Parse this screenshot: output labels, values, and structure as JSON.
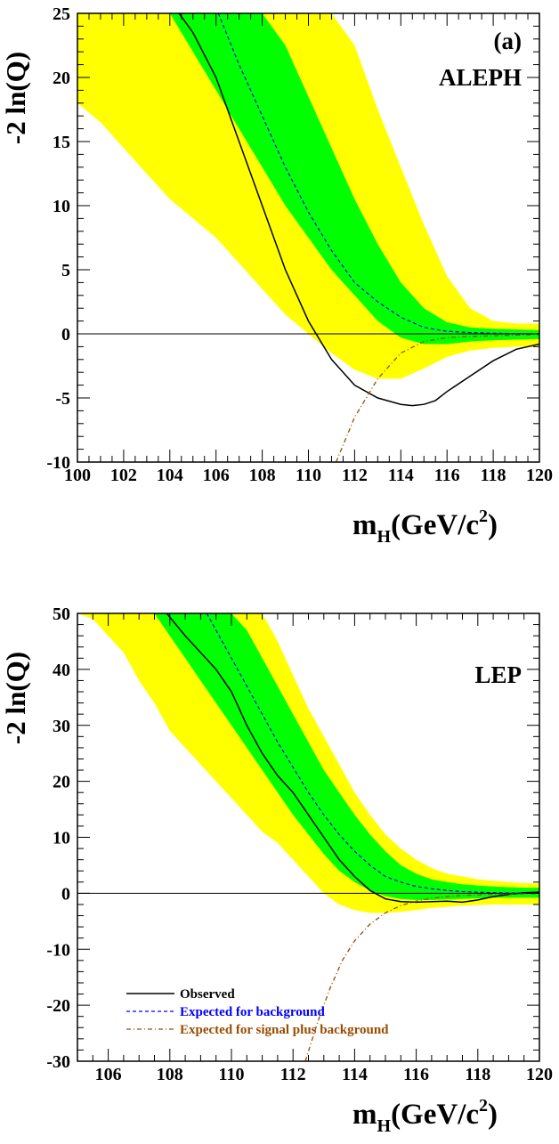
{
  "chart_data": [
    {
      "type": "line",
      "panel_id": "aleph",
      "ylabel": "-2 ln(Q)",
      "xlabel_main": "m",
      "xlabel_sub": "H",
      "xlabel_rest": "(GeV/c",
      "xlabel_sup": "2",
      "xlabel_close": ")",
      "annotations": [
        "(a)",
        "ALEPH"
      ],
      "xlim": [
        100,
        120
      ],
      "ylim": [
        -10,
        25
      ],
      "xticks": [
        100,
        102,
        104,
        106,
        108,
        110,
        112,
        114,
        116,
        118,
        120
      ],
      "yticks": [
        -10,
        -5,
        0,
        5,
        10,
        15,
        20,
        25
      ],
      "grid": false,
      "colors": {
        "yellow_band": "#ffff00",
        "green_band": "#00ff00",
        "observed": "#000000",
        "expected_bkg": "#0000ff",
        "expected_sig": "#994c00"
      },
      "yellow_band": {
        "x": [
          100,
          101,
          102,
          103,
          104,
          105,
          106,
          107,
          108,
          109,
          110,
          111,
          112,
          113,
          114,
          115,
          116,
          117,
          118,
          119,
          120
        ],
        "upper": [
          25,
          25,
          25,
          25,
          25,
          25,
          25,
          25,
          25,
          25,
          25,
          25,
          22.5,
          17.5,
          13,
          8.5,
          4.5,
          2,
          1,
          0.8,
          0.8
        ],
        "lower": [
          18,
          16.5,
          14.5,
          12.5,
          10.5,
          9,
          7.5,
          5.5,
          3.5,
          1.5,
          0,
          -1.5,
          -2.8,
          -3.5,
          -3.5,
          -2.7,
          -1.8,
          -1.3,
          -1.1,
          -1.0,
          -1.0
        ]
      },
      "green_band": {
        "x": [
          104,
          105,
          106,
          107,
          108,
          109,
          110,
          111,
          112,
          113,
          114,
          115,
          116,
          117,
          118,
          119,
          120
        ],
        "upper": [
          25,
          25,
          25,
          25,
          25,
          22.5,
          18.5,
          14.5,
          10.5,
          7,
          4,
          2,
          0.9,
          0.5,
          0.4,
          0.35,
          0.3
        ],
        "lower": [
          25,
          22,
          19,
          16,
          13,
          10,
          7.5,
          5,
          3,
          1,
          -0.3,
          -0.8,
          -0.8,
          -0.6,
          -0.5,
          -0.45,
          -0.4
        ]
      },
      "series": [
        {
          "name": "Observed",
          "x": [
            104.4,
            105,
            106,
            107,
            108,
            109,
            110,
            111,
            112,
            113,
            114,
            114.5,
            115,
            115.5,
            116,
            117,
            118,
            119,
            120
          ],
          "y": [
            25,
            23.5,
            20,
            15,
            10,
            5,
            1,
            -2,
            -4,
            -5,
            -5.5,
            -5.6,
            -5.5,
            -5.2,
            -4.5,
            -3.3,
            -2.1,
            -1.2,
            -0.8
          ]
        },
        {
          "name": "Expected for background",
          "x": [
            106.1,
            107,
            108,
            109,
            110,
            111,
            112,
            113,
            114,
            115,
            116,
            117,
            118,
            119,
            120
          ],
          "y": [
            25,
            21,
            17,
            13,
            9.5,
            6.5,
            4,
            2.5,
            1.3,
            0.5,
            0.2,
            0.1,
            0.05,
            0.02,
            0.01
          ]
        },
        {
          "name": "Expected for signal plus background",
          "x": [
            111.2,
            112,
            113,
            114,
            115,
            116,
            117,
            118,
            119,
            120
          ],
          "y": [
            -10,
            -6.5,
            -3.5,
            -1.5,
            -0.6,
            -0.3,
            -0.2,
            -0.15,
            -0.1,
            -0.05
          ]
        }
      ]
    },
    {
      "type": "line",
      "panel_id": "lep",
      "ylabel": "-2 ln(Q)",
      "xlabel_main": "m",
      "xlabel_sub": "H",
      "xlabel_rest": "(GeV/c",
      "xlabel_sup": "2",
      "xlabel_close": ")",
      "annotations": [
        "LEP"
      ],
      "xlim": [
        105,
        120
      ],
      "ylim": [
        -30,
        50
      ],
      "xticks": [
        106,
        108,
        110,
        112,
        114,
        116,
        118,
        120
      ],
      "yticks": [
        -30,
        -20,
        -10,
        0,
        10,
        20,
        30,
        40,
        50
      ],
      "grid": false,
      "legend_position": "bottom-left",
      "colors": {
        "yellow_band": "#ffff00",
        "green_band": "#00ff00",
        "observed": "#000000",
        "expected_bkg": "#0000ff",
        "expected_sig": "#994c00"
      },
      "yellow_band": {
        "x": [
          105,
          105.5,
          106,
          106.5,
          107,
          107.5,
          108,
          108.5,
          109,
          109.5,
          110,
          110.5,
          111,
          111.5,
          112,
          112.5,
          113,
          113.5,
          114,
          114.5,
          115,
          115.5,
          116,
          116.5,
          117,
          117.5,
          118,
          118.5,
          119,
          119.5,
          120
        ],
        "upper": [
          50,
          50,
          50,
          50,
          50,
          50,
          50,
          50,
          50,
          50,
          50,
          50,
          50,
          45,
          39,
          33,
          28,
          23,
          18,
          14,
          10.5,
          8,
          6,
          4.5,
          3.5,
          3,
          2.5,
          2.2,
          2,
          1.8,
          1.8
        ],
        "lower": [
          50,
          49,
          46,
          43,
          38,
          34,
          29,
          26,
          23,
          20,
          17,
          14,
          11,
          9,
          6,
          3,
          0,
          -2,
          -3,
          -3.5,
          -3.5,
          -3.3,
          -3,
          -2.6,
          -2.4,
          -2.2,
          -2.1,
          -2,
          -2,
          -2,
          -2
        ]
      },
      "green_band": {
        "x": [
          107.5,
          108,
          108.5,
          109,
          109.5,
          110,
          110.5,
          111,
          111.5,
          112,
          112.5,
          113,
          113.5,
          114,
          114.5,
          115,
          115.5,
          116,
          116.5,
          117,
          117.5,
          118,
          118.5,
          119,
          119.5,
          120
        ],
        "upper": [
          50,
          50,
          50,
          50,
          50,
          50,
          47,
          42,
          37,
          32,
          27,
          22,
          18,
          14,
          10.5,
          7.5,
          5,
          3.5,
          2.5,
          2,
          1.6,
          1.4,
          1.2,
          1.1,
          1,
          1
        ],
        "lower": [
          50,
          46,
          42,
          38,
          34,
          30,
          26,
          22,
          18,
          14,
          10.5,
          7,
          4,
          2,
          0.5,
          -0.5,
          -1,
          -1.2,
          -1.2,
          -1.1,
          -1,
          -0.9,
          -0.8,
          -0.8,
          -0.8,
          -0.8
        ]
      },
      "series": [
        {
          "name": "Observed",
          "x": [
            107.9,
            108.5,
            109,
            109.5,
            110,
            110.5,
            111,
            111.5,
            112,
            112.5,
            113,
            113.5,
            114,
            114.5,
            115,
            115.5,
            116,
            116.5,
            117,
            117.5,
            118,
            118.5,
            119,
            119.5,
            120
          ],
          "y": [
            50,
            46,
            43,
            40,
            36,
            30,
            25,
            21,
            18,
            14,
            10,
            6,
            3,
            0.5,
            -1,
            -1.5,
            -1.6,
            -1.5,
            -1.4,
            -1.6,
            -1.2,
            -0.6,
            -0.2,
            0.1,
            0.2
          ],
          "legend_label": "Observed"
        },
        {
          "name": "Expected for background",
          "x": [
            109.2,
            109.5,
            110,
            110.5,
            111,
            111.5,
            112,
            112.5,
            113,
            113.5,
            114,
            114.5,
            115,
            115.5,
            116,
            116.5,
            117,
            117.5,
            118,
            118.5,
            119,
            119.5,
            120
          ],
          "y": [
            50,
            47,
            42,
            37,
            32,
            27,
            22.5,
            18,
            14,
            10.5,
            7.5,
            5,
            3,
            2,
            1.2,
            0.8,
            0.5,
            0.3,
            0.2,
            0.1,
            0.05,
            0.02,
            0.01
          ],
          "legend_label": "Expected for background"
        },
        {
          "name": "Expected for signal plus background",
          "x": [
            112.4,
            112.8,
            113.2,
            113.6,
            114,
            114.5,
            115,
            115.5,
            116,
            116.5,
            117,
            117.5,
            118,
            118.5,
            119,
            119.5,
            120
          ],
          "y": [
            -30,
            -23,
            -17,
            -12,
            -8.5,
            -5.5,
            -3.5,
            -2.2,
            -1.4,
            -0.9,
            -0.6,
            -0.4,
            -0.3,
            -0.2,
            -0.15,
            -0.1,
            -0.05
          ],
          "legend_label": "Expected for signal plus background"
        }
      ]
    }
  ]
}
